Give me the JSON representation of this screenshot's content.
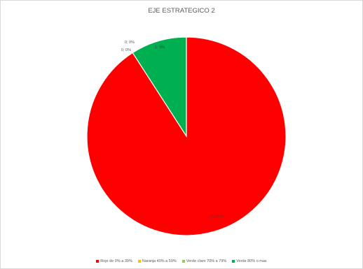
{
  "chart_data": {
    "type": "pie",
    "title": "EJE ESTRATEGICO 2",
    "series": [
      {
        "name": "Rojo de  0% a 39%",
        "value": 10,
        "percent": "91%",
        "color": "#ff0000",
        "label": "10; 91%"
      },
      {
        "name": "Naranja 40% a 59%",
        "value": 0,
        "percent": "0%",
        "color": "#ffc000",
        "label": "0; 0%"
      },
      {
        "name": "Verde claro 70% a 79%",
        "value": 0,
        "percent": "0%",
        "color": "#92d050",
        "label": "0; 0%"
      },
      {
        "name": "Verde  80% o mas",
        "value": 1,
        "percent": "9%",
        "color": "#00b050",
        "label": "1; 9%"
      }
    ],
    "legend_position": "bottom"
  }
}
